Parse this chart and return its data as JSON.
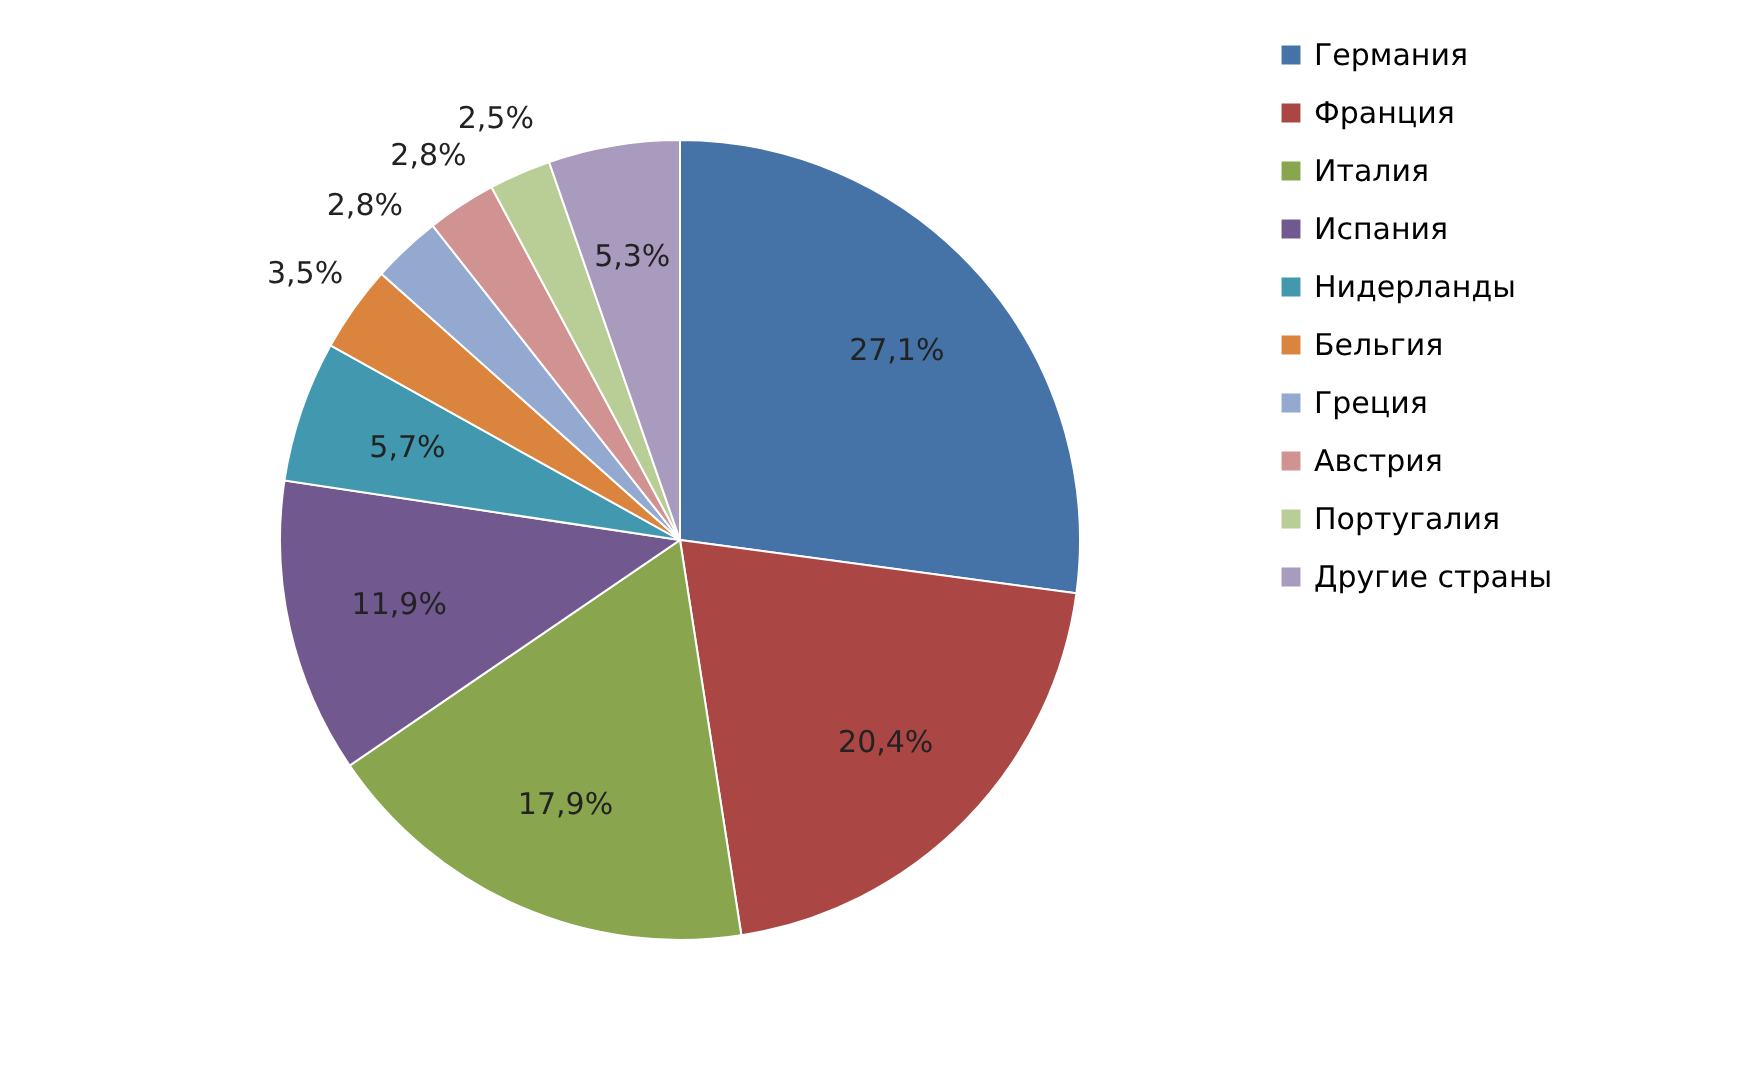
{
  "chart_data": {
    "type": "pie",
    "categories": [
      "Германия",
      "Франция",
      "Италия",
      "Испания",
      "Нидерланды",
      "Бельгия",
      "Греция",
      "Австрия",
      "Португалия",
      "Другие страны"
    ],
    "values": [
      27.1,
      20.4,
      17.9,
      11.9,
      5.7,
      3.5,
      2.8,
      2.8,
      2.5,
      5.3
    ],
    "colors": [
      "#4572a7",
      "#aa4643",
      "#89a54e",
      "#71588f",
      "#4198af",
      "#db843d",
      "#93a9cf",
      "#d19392",
      "#b9cd96",
      "#a99bbd"
    ],
    "value_labels": [
      "27,1%",
      "20,4%",
      "17,9%",
      "11,9%",
      "5,7%",
      "3,5%",
      "2,8%",
      "2,8%",
      "2,5%",
      "5,3%"
    ],
    "legend": "right"
  }
}
